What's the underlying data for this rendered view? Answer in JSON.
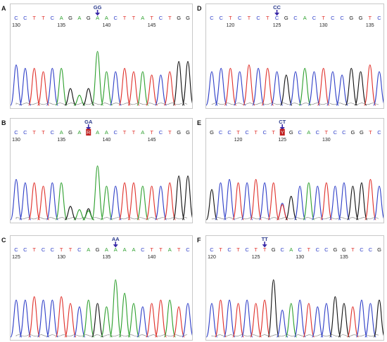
{
  "colors": {
    "A": "#2ea02e",
    "C": "#2f3fc8",
    "G": "#111111",
    "T": "#e0302a",
    "R": "#c8c8c8",
    "Y": "#c8c8c8",
    "arrow": "#3a2aa8",
    "highlight": "#c21e1e",
    "frame": "#c8c8c8"
  },
  "panels": [
    {
      "letter": "A",
      "sequence": "CCTTCAGAGAACTTATCTGG",
      "genotype": "GG",
      "arrowIndex": 9,
      "highlightIndex": -1,
      "ticks": [
        {
          "label": "130",
          "index": 0
        },
        {
          "label": "135",
          "index": 5
        },
        {
          "label": "140",
          "index": 10
        },
        {
          "label": "145",
          "index": 15
        }
      ],
      "heights": [
        0.6,
        0.55,
        0.55,
        0.5,
        0.55,
        0.55,
        0.25,
        0.15,
        0.25,
        0.8,
        0.5,
        0.5,
        0.55,
        0.5,
        0.5,
        0.45,
        0.45,
        0.5,
        0.65,
        0.65
      ]
    },
    {
      "letter": "B",
      "sequence": "CCTTCAGARAACTTATCTGG",
      "genotype": "GA",
      "arrowIndex": 8,
      "highlightIndex": 8,
      "ticks": [
        {
          "label": "130",
          "index": 0
        },
        {
          "label": "135",
          "index": 5
        },
        {
          "label": "140",
          "index": 10
        },
        {
          "label": "145",
          "index": 15
        }
      ],
      "heights": [
        0.6,
        0.55,
        0.55,
        0.5,
        0.55,
        0.55,
        0.2,
        0.15,
        0.3,
        0.8,
        0.5,
        0.5,
        0.55,
        0.55,
        0.5,
        0.5,
        0.5,
        0.55,
        0.65,
        0.65
      ]
    },
    {
      "letter": "C",
      "sequence": "CCTCCTTCAGAAAACTTATC",
      "genotype": "AA",
      "arrowIndex": 11,
      "highlightIndex": -1,
      "ticks": [
        {
          "label": "125",
          "index": 0
        },
        {
          "label": "130",
          "index": 5
        },
        {
          "label": "135",
          "index": 10
        },
        {
          "label": "140",
          "index": 15
        }
      ],
      "heights": [
        0.55,
        0.55,
        0.6,
        0.55,
        0.55,
        0.6,
        0.5,
        0.45,
        0.55,
        0.5,
        0.45,
        0.85,
        0.65,
        0.5,
        0.45,
        0.5,
        0.55,
        0.55,
        0.45,
        0.5
      ]
    },
    {
      "letter": "D",
      "sequence": "CCTCTCTCGCACTCCGGTC",
      "genotype": "CC",
      "arrowIndex": 7,
      "highlightIndex": -1,
      "ticks": [
        {
          "label": "120",
          "index": 2
        },
        {
          "label": "125",
          "index": 7
        },
        {
          "label": "130",
          "index": 12
        },
        {
          "label": "135",
          "index": 17
        }
      ],
      "heights": [
        0.5,
        0.55,
        0.55,
        0.5,
        0.6,
        0.55,
        0.55,
        0.5,
        0.45,
        0.5,
        0.55,
        0.5,
        0.55,
        0.5,
        0.45,
        0.55,
        0.5,
        0.6,
        0.5
      ]
    },
    {
      "letter": "E",
      "sequence": "GCCTCTCTYGCACTCCGGTC",
      "genotype": "CT",
      "arrowIndex": 8,
      "highlightIndex": 8,
      "ticks": [
        {
          "label": "120",
          "index": 3
        },
        {
          "label": "125",
          "index": 8
        },
        {
          "label": "130",
          "index": 13
        }
      ],
      "heights": [
        0.45,
        0.55,
        0.6,
        0.55,
        0.55,
        0.6,
        0.55,
        0.55,
        0.45,
        0.35,
        0.5,
        0.55,
        0.5,
        0.55,
        0.5,
        0.55,
        0.5,
        0.55,
        0.6,
        0.5
      ]
    },
    {
      "letter": "F",
      "sequence": "CTCTCTTGCACTCCGGTCCG",
      "genotype": "TT",
      "arrowIndex": 6,
      "highlightIndex": -1,
      "ticks": [
        {
          "label": "120",
          "index": 0
        },
        {
          "label": "125",
          "index": 5
        },
        {
          "label": "130",
          "index": 10
        },
        {
          "label": "135",
          "index": 15
        }
      ],
      "heights": [
        0.5,
        0.55,
        0.55,
        0.5,
        0.55,
        0.5,
        0.55,
        0.85,
        0.4,
        0.5,
        0.55,
        0.5,
        0.45,
        0.5,
        0.6,
        0.5,
        0.45,
        0.55,
        0.5,
        0.55
      ]
    }
  ]
}
